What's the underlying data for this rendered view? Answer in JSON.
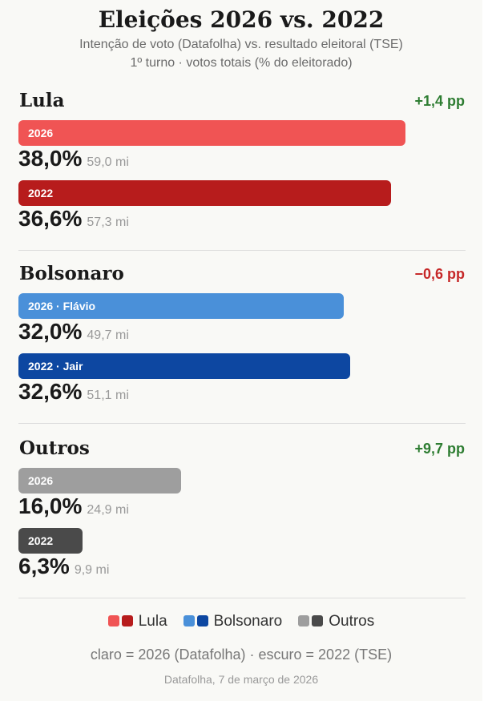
{
  "chart_data": {
    "type": "bar",
    "title": "Eleições 2026 vs. 2022",
    "subtitle": "Intenção de voto (Datafolha) vs. resultado eleitoral (TSE)",
    "subtitle2": "1º turno · votos totais (% do eleitorado)",
    "groups": [
      {
        "name": "Lula",
        "delta": "+1,4 pp",
        "delta_color": "#2e7d32",
        "bars": [
          {
            "label": "2026",
            "value": 38.0,
            "value_text": "38,0%",
            "votes": "59,0 mi",
            "color": "#f05454"
          },
          {
            "label": "2022",
            "value": 36.6,
            "value_text": "36,6%",
            "votes": "57,3 mi",
            "color": "#b71c1c"
          }
        ]
      },
      {
        "name": "Bolsonaro",
        "delta": "−0,6 pp",
        "delta_color": "#c62828",
        "bars": [
          {
            "label": "2026 · Flávio",
            "value": 32.0,
            "value_text": "32,0%",
            "votes": "49,7 mi",
            "color": "#4a90d9"
          },
          {
            "label": "2022 · Jair",
            "value": 32.6,
            "value_text": "32,6%",
            "votes": "51,1 mi",
            "color": "#0d47a1"
          }
        ]
      },
      {
        "name": "Outros",
        "delta": "+9,7 pp",
        "delta_color": "#2e7d32",
        "bars": [
          {
            "label": "2026",
            "value": 16.0,
            "value_text": "16,0%",
            "votes": "24,9 mi",
            "color": "#9e9e9e"
          },
          {
            "label": "2022",
            "value": 6.3,
            "value_text": "6,3%",
            "votes": "9,9 mi",
            "color": "#4a4a4a"
          }
        ]
      }
    ],
    "legend": [
      {
        "label": "Lula",
        "colors": [
          "#f05454",
          "#b71c1c"
        ]
      },
      {
        "label": "Bolsonaro",
        "colors": [
          "#4a90d9",
          "#0d47a1"
        ]
      },
      {
        "label": "Outros",
        "colors": [
          "#9e9e9e",
          "#4a4a4a"
        ]
      }
    ],
    "note": "claro = 2026 (Datafolha) · escuro = 2022 (TSE)",
    "source": "Datafolha, 7 de março de 2026"
  }
}
